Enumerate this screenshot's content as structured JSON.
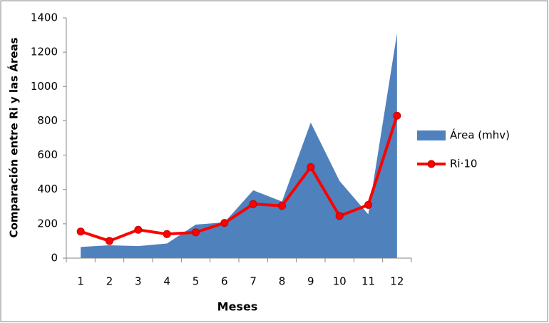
{
  "chart_data": {
    "type": "area_line",
    "x_label": "Meses",
    "y_label": "Comparación entre Ri y las Áreas",
    "categories": [
      "1",
      "2",
      "3",
      "4",
      "5",
      "6",
      "7",
      "8",
      "9",
      "10",
      "11",
      "12"
    ],
    "series": [
      {
        "name": "Área (mhv)",
        "type": "area",
        "color": "#4f81bd",
        "values": [
          65,
          75,
          70,
          85,
          195,
          208,
          395,
          330,
          790,
          450,
          255,
          1310
        ]
      },
      {
        "name": "Ri·10",
        "type": "line",
        "color": "#ff0000",
        "values": [
          155,
          100,
          165,
          140,
          150,
          205,
          315,
          305,
          530,
          245,
          310,
          830
        ]
      }
    ],
    "ylim": [
      0,
      1400
    ],
    "yticks": [
      0,
      200,
      400,
      600,
      800,
      1000,
      1200,
      1400
    ],
    "grid": false,
    "legend": "right"
  }
}
